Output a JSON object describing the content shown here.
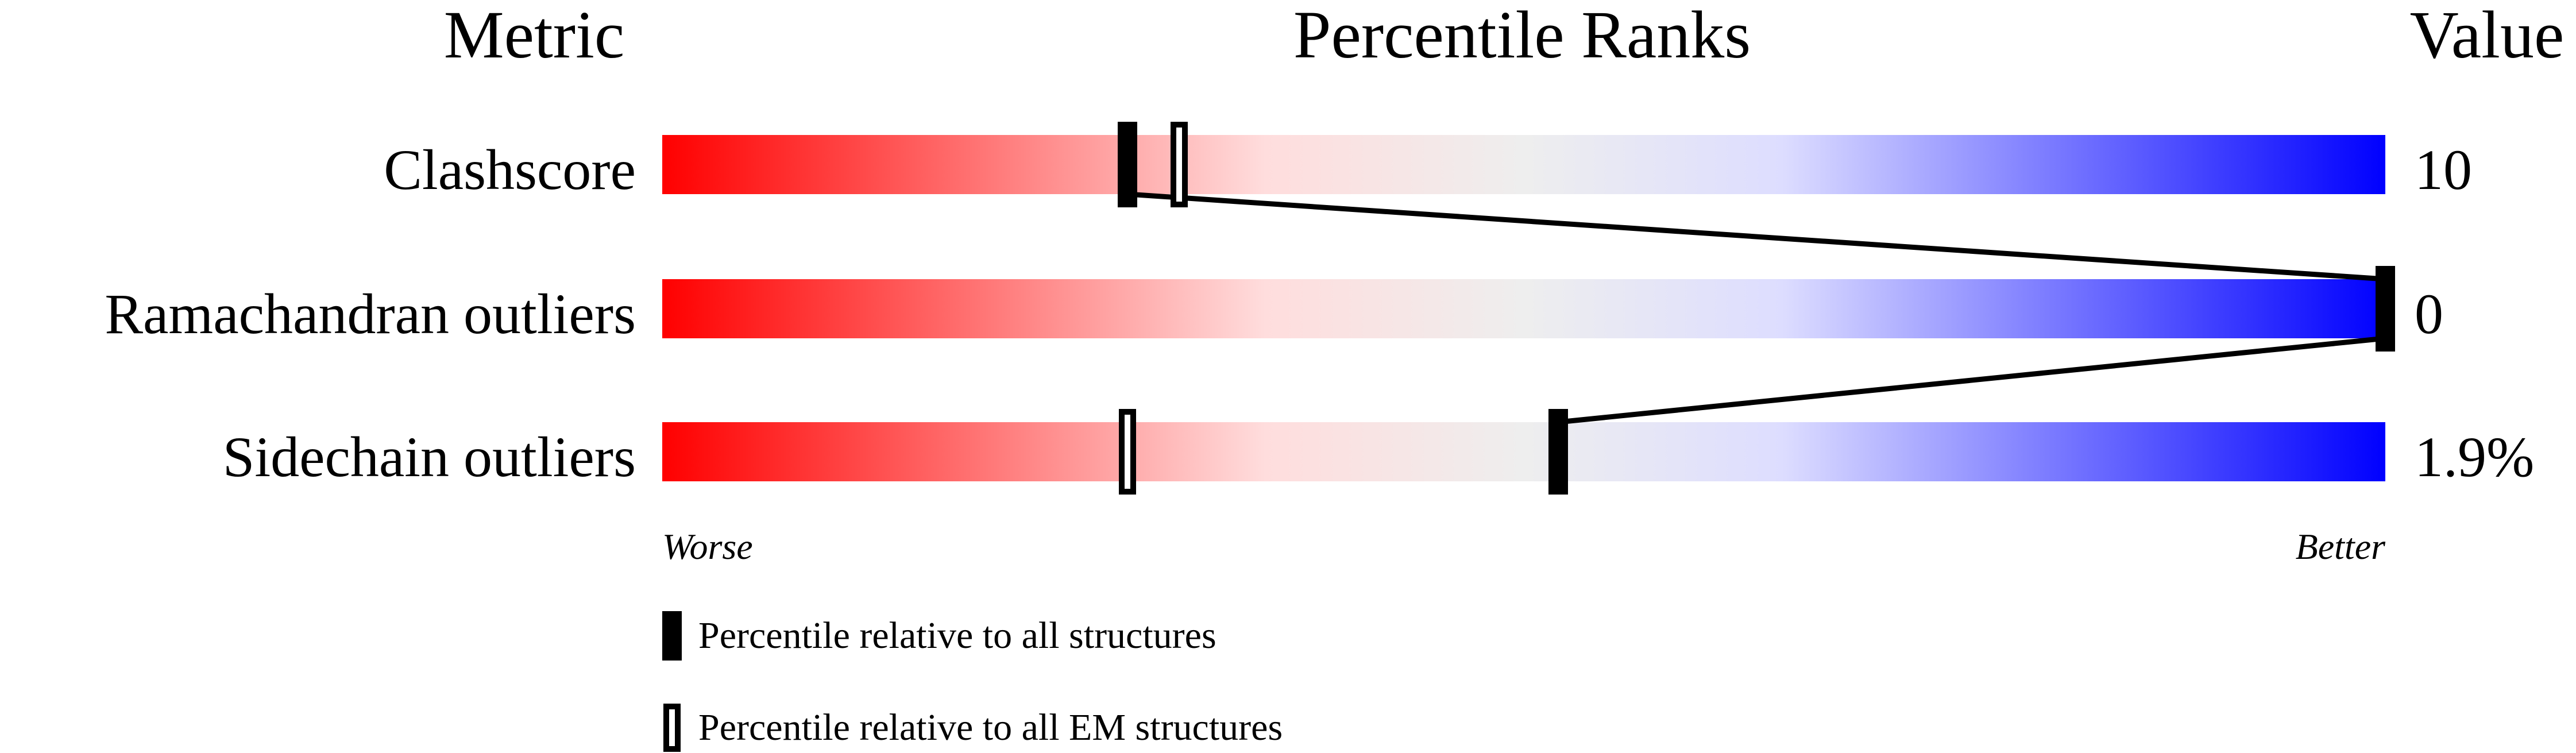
{
  "chart_data": {
    "type": "percentile-bar",
    "headers": {
      "metric": "Metric",
      "ranks": "Percentile Ranks",
      "value": "Value"
    },
    "xlim": [
      0,
      100
    ],
    "axis": {
      "left": "Worse",
      "right": "Better"
    },
    "gradient_colors": [
      "#ff0000",
      "#ffdddd",
      "#eeeeee",
      "#ddddff",
      "#0000ff"
    ],
    "rows": [
      {
        "metric": "Clashscore",
        "value": "10",
        "percentile_all": 27,
        "percentile_em": 30
      },
      {
        "metric": "Ramachandran outliers",
        "value": "0",
        "percentile_all": 100,
        "percentile_em": 100
      },
      {
        "metric": "Sidechain outliers",
        "value": "1.9%",
        "percentile_all": 52,
        "percentile_em": 27
      }
    ],
    "legend": [
      {
        "marker": "filled",
        "label": "Percentile relative to all structures"
      },
      {
        "marker": "open",
        "label": "Percentile relative to all EM structures"
      }
    ]
  }
}
